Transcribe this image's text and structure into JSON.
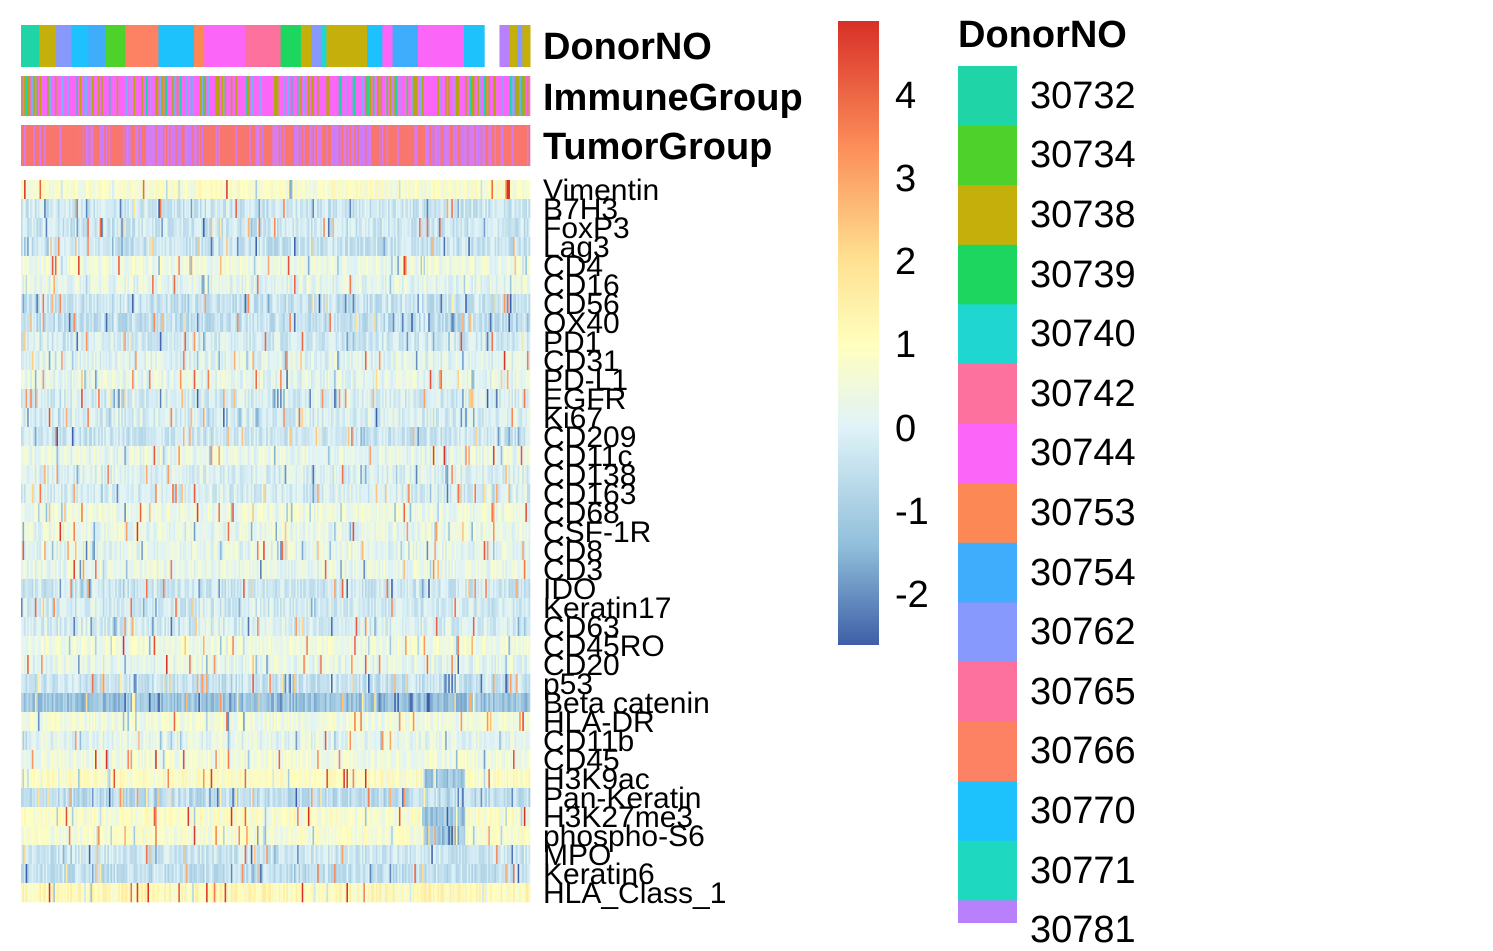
{
  "chart_data": {
    "type": "heatmap",
    "annotations": [
      "DonorNO",
      "ImmuneGroup",
      "TumorGroup"
    ],
    "rows": [
      "Vimentin",
      "B7H3",
      "FoxP3",
      "Lag3",
      "CD4",
      "CD16",
      "CD56",
      "OX40",
      "PD1",
      "CD31",
      "PD-L1",
      "EGFR",
      "Ki67",
      "CD209",
      "CD11c",
      "CD138",
      "CD163",
      "CD68",
      "CSF-1R",
      "CD8",
      "CD3",
      "IDO",
      "Keratin17",
      "CD63",
      "CD45RO",
      "CD20",
      "p53",
      "Beta catenin",
      "HLA-DR",
      "CD11b",
      "CD45",
      "H3K9ac",
      "Pan-Keratin",
      "H3K27me3",
      "phospho-S6",
      "MPO",
      "Keratin6",
      "HLA_Class_1"
    ],
    "row_base": [
      0.8,
      -0.3,
      -0.35,
      -0.4,
      0.4,
      0.2,
      -0.4,
      -0.5,
      -0.2,
      0.1,
      0.2,
      -0.1,
      -0.1,
      -0.3,
      0.3,
      0.0,
      -0.1,
      0.4,
      0.3,
      0.2,
      0.3,
      -0.3,
      -0.2,
      -0.1,
      0.5,
      0.2,
      -0.4,
      -1.2,
      0.5,
      0.2,
      0.5,
      0.9,
      -0.6,
      0.8,
      0.7,
      -0.3,
      -0.5,
      1.1
    ],
    "column_count": 330,
    "colorbar": {
      "ticks": [
        "4",
        "3",
        "2",
        "1",
        "0",
        "-1",
        "-2"
      ],
      "range": [
        -2.6,
        4.9
      ],
      "colors": [
        "#3E5FA7",
        "#91BFDB",
        "#E0F3F8",
        "#FFFFBF",
        "#FEE090",
        "#FC8D59",
        "#D73027"
      ]
    },
    "donor_legend": {
      "title": "DonorNO",
      "items": [
        {
          "label": "30732",
          "color": "#1FD5A8"
        },
        {
          "label": "30734",
          "color": "#4FD12C"
        },
        {
          "label": "30738",
          "color": "#C5AF0B"
        },
        {
          "label": "30739",
          "color": "#1CD660"
        },
        {
          "label": "30740",
          "color": "#1FD6D0"
        },
        {
          "label": "30742",
          "color": "#FC719E"
        },
        {
          "label": "30744",
          "color": "#FC66F8"
        },
        {
          "label": "30753",
          "color": "#FC8955"
        },
        {
          "label": "30754",
          "color": "#3FACFC"
        },
        {
          "label": "30762",
          "color": "#8799FC"
        },
        {
          "label": "30765",
          "color": "#FC719E"
        },
        {
          "label": "30766",
          "color": "#FC8263"
        },
        {
          "label": "30770",
          "color": "#1DC1FC"
        },
        {
          "label": "30771",
          "color": "#1FD8C0"
        },
        {
          "label": "30781",
          "color": "#B980FC"
        }
      ]
    },
    "immune_colors": [
      "#FC66F8",
      "#B7A40E",
      "#7CAEF5",
      "#1FD5A8"
    ],
    "tumor_colors": [
      "#F8766D",
      "#D67CF0",
      "#C77CFF"
    ]
  }
}
